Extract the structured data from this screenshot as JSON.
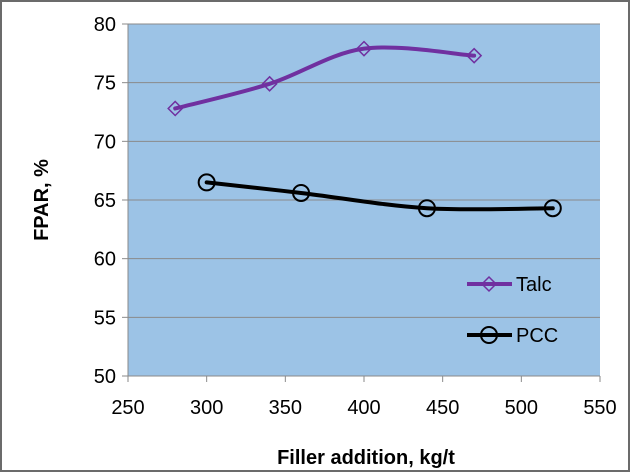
{
  "chart_data": {
    "type": "line",
    "title": "",
    "xlabel": "Filler addition, kg/t",
    "ylabel": "FPAR, %",
    "xlim": [
      250,
      550
    ],
    "ylim": [
      50,
      80
    ],
    "x_ticks": [
      "250",
      "300",
      "350",
      "400",
      "450",
      "500",
      "550"
    ],
    "y_ticks": [
      "50",
      "55",
      "60",
      "65",
      "70",
      "75",
      "80"
    ],
    "grid": "horizontal",
    "legend_position": "right",
    "plot_background": "#9cc3e6",
    "series": [
      {
        "name": "Talc",
        "color": "#7030a0",
        "marker": "diamond-icon",
        "x": [
          280,
          340,
          400,
          470
        ],
        "y": [
          72.8,
          74.9,
          77.9,
          77.3
        ]
      },
      {
        "name": "PCC",
        "color": "#000000",
        "marker": "circle-icon",
        "x": [
          300,
          360,
          440,
          520
        ],
        "y": [
          66.5,
          65.6,
          64.3,
          64.3
        ]
      }
    ]
  }
}
